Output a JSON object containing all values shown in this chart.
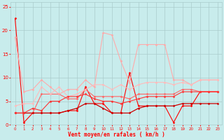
{
  "xlabel": "Vent moyen/en rafales ( km/h )",
  "x": [
    0,
    1,
    2,
    3,
    4,
    5,
    6,
    7,
    8,
    9,
    10,
    11,
    12,
    13,
    14,
    15,
    16,
    17,
    18,
    19,
    20,
    21,
    22,
    23
  ],
  "series": [
    {
      "color": "#ff0000",
      "linewidth": 0.8,
      "y": [
        22.5,
        0.5,
        2.5,
        2.5,
        2.5,
        2.5,
        3.0,
        3.0,
        8.0,
        4.5,
        4.5,
        2.5,
        2.5,
        11.0,
        4.0,
        4.0,
        4.0,
        4.0,
        0.5,
        4.0,
        4.0,
        7.0,
        7.0,
        7.0
      ]
    },
    {
      "color": "#ff6666",
      "linewidth": 0.8,
      "y": [
        2.5,
        2.5,
        2.5,
        6.5,
        6.5,
        6.5,
        5.5,
        5.5,
        7.5,
        6.0,
        6.0,
        6.0,
        6.0,
        5.5,
        6.5,
        6.5,
        6.5,
        6.5,
        6.5,
        7.5,
        7.5,
        7.0,
        7.0,
        7.0
      ]
    },
    {
      "color": "#ffaaaa",
      "linewidth": 0.8,
      "y": [
        18.5,
        7.0,
        7.5,
        9.5,
        8.0,
        6.5,
        7.5,
        7.5,
        9.5,
        8.0,
        19.5,
        19.0,
        13.5,
        9.0,
        17.0,
        17.0,
        17.0,
        17.0,
        9.5,
        9.5,
        8.5,
        9.5,
        9.5,
        9.5
      ]
    },
    {
      "color": "#ffbbbb",
      "linewidth": 0.8,
      "y": [
        4.0,
        4.5,
        4.5,
        8.0,
        6.5,
        8.0,
        6.0,
        6.5,
        7.5,
        8.5,
        8.5,
        7.5,
        8.5,
        7.5,
        8.5,
        9.0,
        9.0,
        9.0,
        8.5,
        9.0,
        8.5,
        9.5,
        9.5,
        9.5
      ]
    },
    {
      "color": "#cc0000",
      "linewidth": 0.9,
      "y": [
        2.5,
        2.5,
        2.5,
        2.5,
        2.5,
        2.5,
        3.0,
        3.5,
        4.5,
        4.5,
        3.5,
        2.5,
        2.5,
        2.5,
        3.5,
        4.0,
        4.0,
        4.0,
        4.0,
        4.5,
        4.5,
        4.5,
        4.5,
        4.5
      ]
    },
    {
      "color": "#ff3333",
      "linewidth": 0.8,
      "y": [
        2.5,
        2.5,
        3.5,
        3.0,
        5.0,
        5.0,
        6.0,
        6.0,
        6.5,
        5.5,
        5.0,
        5.0,
        4.5,
        5.0,
        5.5,
        6.0,
        6.0,
        6.0,
        6.0,
        7.0,
        7.0,
        7.0,
        7.0,
        7.0
      ]
    }
  ],
  "ylim": [
    0,
    26
  ],
  "yticks": [
    0,
    5,
    10,
    15,
    20,
    25
  ],
  "bg_color": "#c8ecec",
  "grid_color": "#aacccc",
  "tick_color": "#ff0000",
  "label_color": "#ff0000",
  "marker": "D",
  "markersize": 1.5
}
